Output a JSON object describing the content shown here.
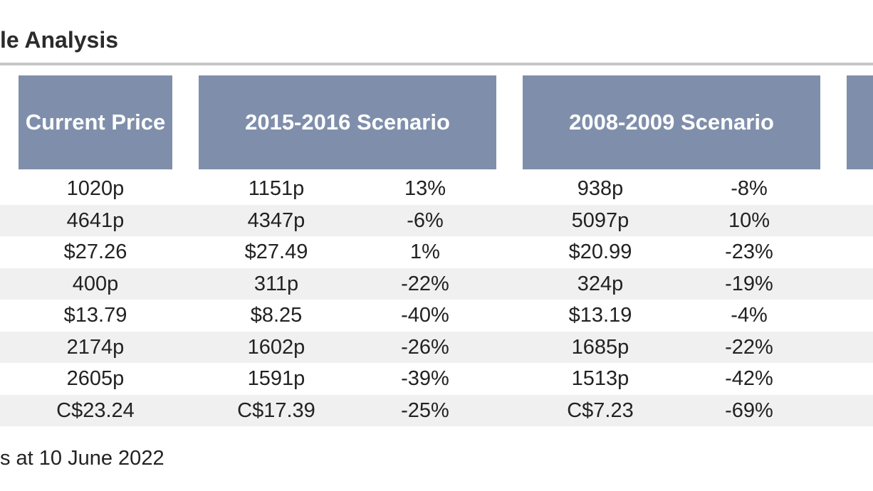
{
  "title": "le Analysis",
  "headers": {
    "current_price": "Current Price",
    "scenario_2015_2016": "2015-2016 Scenario",
    "scenario_2008_2009": "2008-2009 Scenario"
  },
  "rows": [
    {
      "current": "1020p",
      "s1516_price": "1151p",
      "s1516_pct": "13%",
      "s0809_price": "938p",
      "s0809_pct": "-8%"
    },
    {
      "current": "4641p",
      "s1516_price": "4347p",
      "s1516_pct": "-6%",
      "s0809_price": "5097p",
      "s0809_pct": "10%"
    },
    {
      "current": "$27.26",
      "s1516_price": "$27.49",
      "s1516_pct": "1%",
      "s0809_price": "$20.99",
      "s0809_pct": "-23%"
    },
    {
      "current": "400p",
      "s1516_price": "311p",
      "s1516_pct": "-22%",
      "s0809_price": "324p",
      "s0809_pct": "-19%"
    },
    {
      "current": "$13.79",
      "s1516_price": "$8.25",
      "s1516_pct": "-40%",
      "s0809_price": "$13.19",
      "s0809_pct": "-4%"
    },
    {
      "current": "2174p",
      "s1516_price": "1602p",
      "s1516_pct": "-26%",
      "s0809_price": "1685p",
      "s0809_pct": "-22%"
    },
    {
      "current": "2605p",
      "s1516_price": "1591p",
      "s1516_pct": "-39%",
      "s0809_price": "1513p",
      "s0809_pct": "-42%"
    },
    {
      "current": "C$23.24",
      "s1516_price": "C$17.39",
      "s1516_pct": "-25%",
      "s0809_price": "C$7.23",
      "s0809_pct": "-69%"
    }
  ],
  "footnote": "s at 10 June 2022",
  "colors": {
    "header_bg": "#7f8fab",
    "header_text": "#ffffff",
    "row_shade": "#f0f0f0",
    "rule": "#c7c7c7"
  }
}
